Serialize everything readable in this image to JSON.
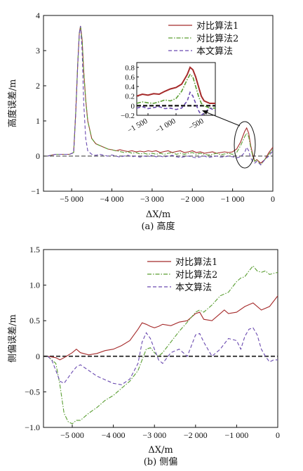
{
  "colors": {
    "series1": "#a52a2a",
    "series2": "#5a9e32",
    "series3": "#6a4ab0",
    "zero_line": "#333333",
    "axis": "#111111"
  },
  "chart_data": [
    {
      "type": "line",
      "caption": "(a) 高度",
      "xlabel": "ΔX/m",
      "ylabel": "高度误差/m",
      "xlim": [
        -5700,
        0
      ],
      "ylim": [
        -1,
        4
      ],
      "xticks": [
        -5000,
        -4000,
        -3000,
        -2000,
        -1000,
        0
      ],
      "xtick_labels": [
        "−5 000",
        "−4 000",
        "−3 000",
        "−2 000",
        "−1 000",
        "0"
      ],
      "yticks": [
        -1,
        0,
        1,
        2,
        3,
        4
      ],
      "ytick_labels": [
        "−1",
        "0",
        "1",
        "2",
        "3",
        "4"
      ],
      "legend": [
        "对比算法1",
        "对比算法2",
        "本文算法"
      ],
      "legend_position": "top-right",
      "series": [
        {
          "name": "对比算法1",
          "style": "solid",
          "x": [
            -5600,
            -5400,
            -5200,
            -5050,
            -4950,
            -4900,
            -4850,
            -4810,
            -4780,
            -4740,
            -4700,
            -4650,
            -4600,
            -4500,
            -4400,
            -4300,
            -4200,
            -4100,
            -4000,
            -3900,
            -3800,
            -3700,
            -3600,
            -3500,
            -3400,
            -3300,
            -3200,
            -3100,
            -3000,
            -2900,
            -2800,
            -2700,
            -2600,
            -2500,
            -2400,
            -2300,
            -2200,
            -2100,
            -2000,
            -1900,
            -1800,
            -1700,
            -1600,
            -1500,
            -1400,
            -1300,
            -1200,
            -1100,
            -1000,
            -900,
            -800,
            -700,
            -650,
            -600,
            -550,
            -500,
            -450,
            -400,
            -300,
            -200,
            -100,
            0
          ],
          "y": [
            0,
            0.05,
            0.05,
            0.05,
            0.1,
            1.2,
            2.6,
            3.5,
            3.7,
            3.3,
            2.4,
            1.6,
            1,
            0.5,
            0.35,
            0.3,
            0.25,
            0.2,
            0.18,
            0.15,
            0.18,
            0.15,
            0.13,
            0.15,
            0.12,
            0.14,
            0.12,
            0.15,
            0.13,
            0.15,
            0.1,
            0.13,
            0.15,
            0.1,
            0.13,
            0.15,
            0.1,
            0.12,
            0.15,
            0.1,
            0.12,
            0.08,
            0.1,
            0.12,
            0.08,
            0.1,
            0.12,
            0.1,
            0.12,
            0.2,
            0.4,
            0.7,
            0.8,
            0.65,
            0.3,
            0.05,
            -0.15,
            -0.1,
            -0.2,
            -0.1,
            0.1,
            0.25
          ]
        },
        {
          "name": "对比算法2",
          "style": "dashdot",
          "x": [
            -5600,
            -5400,
            -5200,
            -5050,
            -4950,
            -4900,
            -4850,
            -4810,
            -4780,
            -4740,
            -4700,
            -4650,
            -4600,
            -4500,
            -4400,
            -4300,
            -4200,
            -4100,
            -4000,
            -3900,
            -3800,
            -3700,
            -3600,
            -3500,
            -3400,
            -3300,
            -3200,
            -3100,
            -3000,
            -2900,
            -2800,
            -2700,
            -2600,
            -2500,
            -2400,
            -2300,
            -2200,
            -2100,
            -2000,
            -1900,
            -1800,
            -1700,
            -1600,
            -1500,
            -1400,
            -1300,
            -1200,
            -1100,
            -1000,
            -900,
            -800,
            -700,
            -650,
            -600,
            -550,
            -500,
            -450,
            -400,
            -300,
            -200,
            -100,
            0
          ],
          "y": [
            0,
            0.05,
            0.05,
            0.05,
            0.1,
            1.2,
            2.6,
            3.5,
            3.7,
            3.3,
            2.4,
            1.6,
            1,
            0.5,
            0.35,
            0.3,
            0.25,
            0.2,
            0.18,
            0.15,
            0.13,
            0.1,
            0.12,
            0.08,
            0.1,
            0.06,
            0.08,
            0.05,
            0.08,
            0.05,
            0.08,
            0.05,
            0.08,
            0.1,
            0.05,
            0.08,
            0.05,
            0.08,
            0.1,
            0.05,
            0.08,
            0.05,
            0.03,
            0.05,
            0.08,
            0.04,
            0.06,
            0.08,
            0.05,
            0.1,
            0.3,
            0.55,
            0.65,
            0.55,
            0.25,
            0,
            -0.15,
            -0.1,
            -0.25,
            -0.1,
            0.05,
            0.2
          ]
        },
        {
          "name": "本文算法",
          "style": "dashed",
          "x": [
            -5600,
            -5400,
            -5200,
            -5050,
            -4950,
            -4900,
            -4850,
            -4810,
            -4780,
            -4740,
            -4700,
            -4650,
            -4600,
            -4500,
            -4400,
            -4300,
            -4200,
            -4100,
            -4000,
            -3900,
            -3800,
            -3700,
            -3600,
            -3500,
            -3400,
            -3300,
            -3200,
            -3100,
            -3000,
            -2900,
            -2800,
            -2700,
            -2600,
            -2500,
            -2400,
            -2300,
            -2200,
            -2100,
            -2000,
            -1900,
            -1800,
            -1700,
            -1600,
            -1500,
            -1400,
            -1300,
            -1200,
            -1100,
            -1000,
            -900,
            -800,
            -700,
            -650,
            -600,
            -550,
            -500,
            -450,
            -400,
            -300,
            -200,
            -100,
            0
          ],
          "y": [
            0,
            0.05,
            0.05,
            0.05,
            0.1,
            1.2,
            2.6,
            3.5,
            3.7,
            3.0,
            1.5,
            0.5,
            0.15,
            0.05,
            0.02,
            0.05,
            0.02,
            0,
            0.03,
            0,
            -0.03,
            0,
            0.02,
            -0.02,
            0,
            -0.03,
            0,
            -0.02,
            0.02,
            -0.02,
            0,
            -0.03,
            0,
            0.02,
            -0.02,
            -0.04,
            -0.02,
            0,
            -0.03,
            -0.05,
            -0.02,
            0,
            -0.04,
            -0.02,
            0,
            -0.03,
            -0.02,
            0,
            -0.02,
            -0.05,
            -0.02,
            0.1,
            0.25,
            0.15,
            -0.05,
            -0.15,
            -0.2,
            -0.15,
            -0.25,
            -0.1,
            0,
            0.15
          ]
        }
      ],
      "inset": {
        "xlim": [
          -1700,
          -300
        ],
        "ylim": [
          -0.2,
          0.9
        ],
        "xticks": [
          -1500,
          -1000,
          -500
        ],
        "xtick_labels": [
          "−1 500",
          "−1 000",
          "−500"
        ],
        "yticks": [
          -0.2,
          0,
          0.2,
          0.4,
          0.6,
          0.8
        ],
        "ytick_labels": [
          "−0.2",
          "0",
          "0.2",
          "0.4",
          "0.6",
          "0.8"
        ],
        "series": [
          {
            "name": "对比算法1",
            "x": [
              -1700,
              -1600,
              -1500,
              -1400,
              -1300,
              -1200,
              -1100,
              -1000,
              -900,
              -800,
              -750,
              -700,
              -650,
              -600,
              -550,
              -500,
              -400,
              -300
            ],
            "y": [
              0.2,
              0.24,
              0.22,
              0.25,
              0.24,
              0.3,
              0.35,
              0.38,
              0.45,
              0.65,
              0.8,
              0.75,
              0.6,
              0.4,
              0.2,
              0.1,
              0.05,
              0.05
            ]
          },
          {
            "name": "对比算法2",
            "x": [
              -1700,
              -1600,
              -1500,
              -1400,
              -1300,
              -1200,
              -1100,
              -1000,
              -900,
              -800,
              -750,
              -700,
              -650,
              -600,
              -550,
              -500,
              -400,
              -300
            ],
            "y": [
              0.05,
              0.08,
              0.06,
              0.05,
              0.08,
              0.12,
              0.1,
              0.15,
              0.3,
              0.55,
              0.65,
              0.6,
              0.4,
              0.2,
              0.05,
              0,
              -0.05,
              -0.05
            ]
          },
          {
            "name": "本文算法",
            "x": [
              -1700,
              -1600,
              -1500,
              -1400,
              -1300,
              -1200,
              -1100,
              -1000,
              -900,
              -800,
              -750,
              -700,
              -650,
              -600,
              -550,
              -500,
              -400,
              -300
            ],
            "y": [
              -0.05,
              -0.02,
              -0.06,
              -0.04,
              -0.02,
              -0.06,
              -0.05,
              -0.08,
              -0.05,
              0.1,
              0.28,
              0.2,
              0.05,
              -0.1,
              -0.2,
              -0.15,
              -0.05,
              -0.1
            ]
          }
        ]
      }
    },
    {
      "type": "line",
      "caption": "(b) 侧偏",
      "xlabel": "ΔX/m",
      "ylabel": "侧偏误差/m",
      "xlim": [
        -5700,
        0
      ],
      "ylim": [
        -1.0,
        1.5
      ],
      "xticks": [
        -5000,
        -4000,
        -3000,
        -2000,
        -1000,
        0
      ],
      "xtick_labels": [
        "−5 000",
        "−4 000",
        "−3 000",
        "−2 000",
        "−1 000",
        "0"
      ],
      "yticks": [
        -1.0,
        -0.5,
        0,
        0.5,
        1.0,
        1.5
      ],
      "ytick_labels": [
        "−1.0",
        "−0.5",
        "0",
        "0.5",
        "1.0",
        "1.5"
      ],
      "legend": [
        "对比算法1",
        "对比算法2",
        "本文算法"
      ],
      "legend_position": "top-right",
      "series": [
        {
          "name": "对比算法1",
          "style": "solid",
          "x": [
            -5600,
            -5400,
            -5300,
            -5200,
            -5000,
            -4900,
            -4800,
            -4600,
            -4400,
            -4200,
            -4000,
            -3800,
            -3600,
            -3400,
            -3300,
            -3200,
            -3100,
            -3000,
            -2900,
            -2800,
            -2600,
            -2400,
            -2200,
            -2000,
            -1900,
            -1800,
            -1600,
            -1400,
            -1300,
            -1200,
            -1000,
            -800,
            -600,
            -400,
            -200,
            0
          ],
          "y": [
            0,
            -0.02,
            -0.05,
            -0.02,
            0.05,
            0.1,
            0.05,
            0.02,
            0.04,
            0.08,
            0.1,
            0.15,
            0.22,
            0.38,
            0.47,
            0.45,
            0.42,
            0.4,
            0.42,
            0.45,
            0.43,
            0.48,
            0.5,
            0.6,
            0.62,
            0.52,
            0.5,
            0.6,
            0.65,
            0.6,
            0.62,
            0.7,
            0.75,
            0.65,
            0.7,
            0.85
          ]
        },
        {
          "name": "对比算法2",
          "style": "dashdot",
          "x": [
            -5600,
            -5400,
            -5300,
            -5200,
            -5100,
            -5000,
            -4900,
            -4800,
            -4600,
            -4400,
            -4200,
            -4000,
            -3800,
            -3600,
            -3400,
            -3300,
            -3200,
            -3100,
            -3000,
            -2900,
            -2800,
            -2600,
            -2400,
            -2200,
            -2000,
            -1900,
            -1800,
            -1600,
            -1400,
            -1200,
            -1000,
            -900,
            -800,
            -700,
            -600,
            -500,
            -400,
            -300,
            -200,
            0
          ],
          "y": [
            0,
            -0.1,
            -0.4,
            -0.8,
            -0.92,
            -0.95,
            -0.9,
            -0.9,
            -0.8,
            -0.72,
            -0.62,
            -0.55,
            -0.45,
            -0.35,
            -0.2,
            -0.05,
            0.1,
            0.12,
            0.05,
            0,
            0.05,
            0.2,
            0.35,
            0.48,
            0.62,
            0.65,
            0.62,
            0.72,
            0.85,
            0.9,
            1.05,
            1.1,
            1.12,
            1.2,
            1.27,
            1.2,
            1.18,
            1.2,
            1.15,
            1.18
          ]
        },
        {
          "name": "本文算法",
          "style": "dashed",
          "x": [
            -5600,
            -5500,
            -5400,
            -5300,
            -5200,
            -5100,
            -5000,
            -4900,
            -4800,
            -4600,
            -4400,
            -4200,
            -4000,
            -3800,
            -3600,
            -3400,
            -3300,
            -3200,
            -3100,
            -3000,
            -2900,
            -2800,
            -2600,
            -2400,
            -2200,
            -2000,
            -1900,
            -1800,
            -1600,
            -1400,
            -1200,
            -1000,
            -900,
            -800,
            -700,
            -600,
            -500,
            -400,
            -300,
            -200,
            -100,
            0
          ],
          "y": [
            0,
            -0.05,
            -0.2,
            -0.35,
            -0.38,
            -0.3,
            -0.22,
            -0.15,
            -0.12,
            -0.2,
            -0.28,
            -0.33,
            -0.38,
            -0.4,
            -0.32,
            -0.1,
            0.2,
            0.33,
            0.25,
            0.1,
            -0.05,
            -0.1,
            0.05,
            0.1,
            0.0,
            0.3,
            0.32,
            0.2,
            0.0,
            0.1,
            0.25,
            0.22,
            0.1,
            0.28,
            0.38,
            0.4,
            0.3,
            0.1,
            0.0,
            -0.08,
            -0.05,
            -0.05
          ]
        }
      ]
    }
  ]
}
